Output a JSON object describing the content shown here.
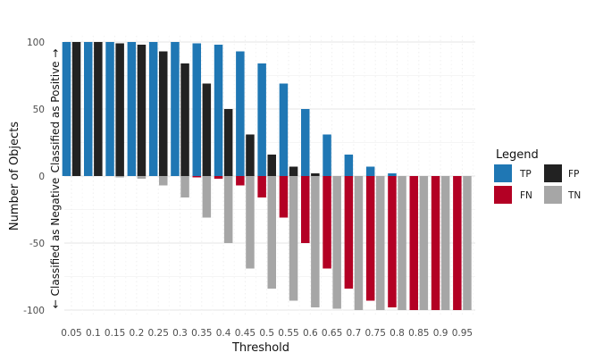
{
  "chart_data": {
    "type": "bar",
    "title": "",
    "xlabel": "Threshold",
    "ylabel": "Number of Objects",
    "ylim": [
      -105,
      105
    ],
    "yticks": [
      100,
      50,
      0,
      -50,
      -100
    ],
    "ytick_labels": [
      "100",
      "50",
      "0",
      "-50",
      "-100"
    ],
    "annotations": {
      "positive": "Classified as Positive →",
      "negative": "← Classified as Negative"
    },
    "categories": [
      "0.05",
      "0.1",
      "0.15",
      "0.2",
      "0.25",
      "0.3",
      "0.35",
      "0.4",
      "0.45",
      "0.5",
      "0.55",
      "0.6",
      "0.65",
      "0.7",
      "0.75",
      "0.8",
      "0.85",
      "0.9",
      "0.95"
    ],
    "series": [
      {
        "name": "TP",
        "color": "#1F77B4",
        "values": [
          100,
          100,
          100,
          100,
          100,
          100,
          99,
          98,
          93,
          84,
          69,
          50,
          31,
          16,
          7,
          2,
          0,
          0,
          0
        ]
      },
      {
        "name": "FP",
        "color": "#222222",
        "values": [
          100,
          100,
          99,
          98,
          93,
          84,
          69,
          50,
          31,
          16,
          7,
          2,
          0,
          0,
          0,
          0,
          0,
          0,
          0
        ]
      },
      {
        "name": "FN",
        "color": "#B30024",
        "values": [
          0,
          0,
          0,
          0,
          0,
          0,
          -1,
          -2,
          -7,
          -16,
          -31,
          -50,
          -69,
          -84,
          -93,
          -98,
          -100,
          -100,
          -100
        ]
      },
      {
        "name": "TN",
        "color": "#A6A6A6",
        "values": [
          0,
          0,
          -1,
          -2,
          -7,
          -16,
          -31,
          -50,
          -69,
          -84,
          -93,
          -98,
          -99,
          -100,
          -100,
          -100,
          -100,
          -100,
          -100
        ]
      }
    ],
    "grid": true,
    "legend": {
      "title": "Legend",
      "placement": "right",
      "items": [
        "TP",
        "FP",
        "FN",
        "TN"
      ]
    }
  }
}
